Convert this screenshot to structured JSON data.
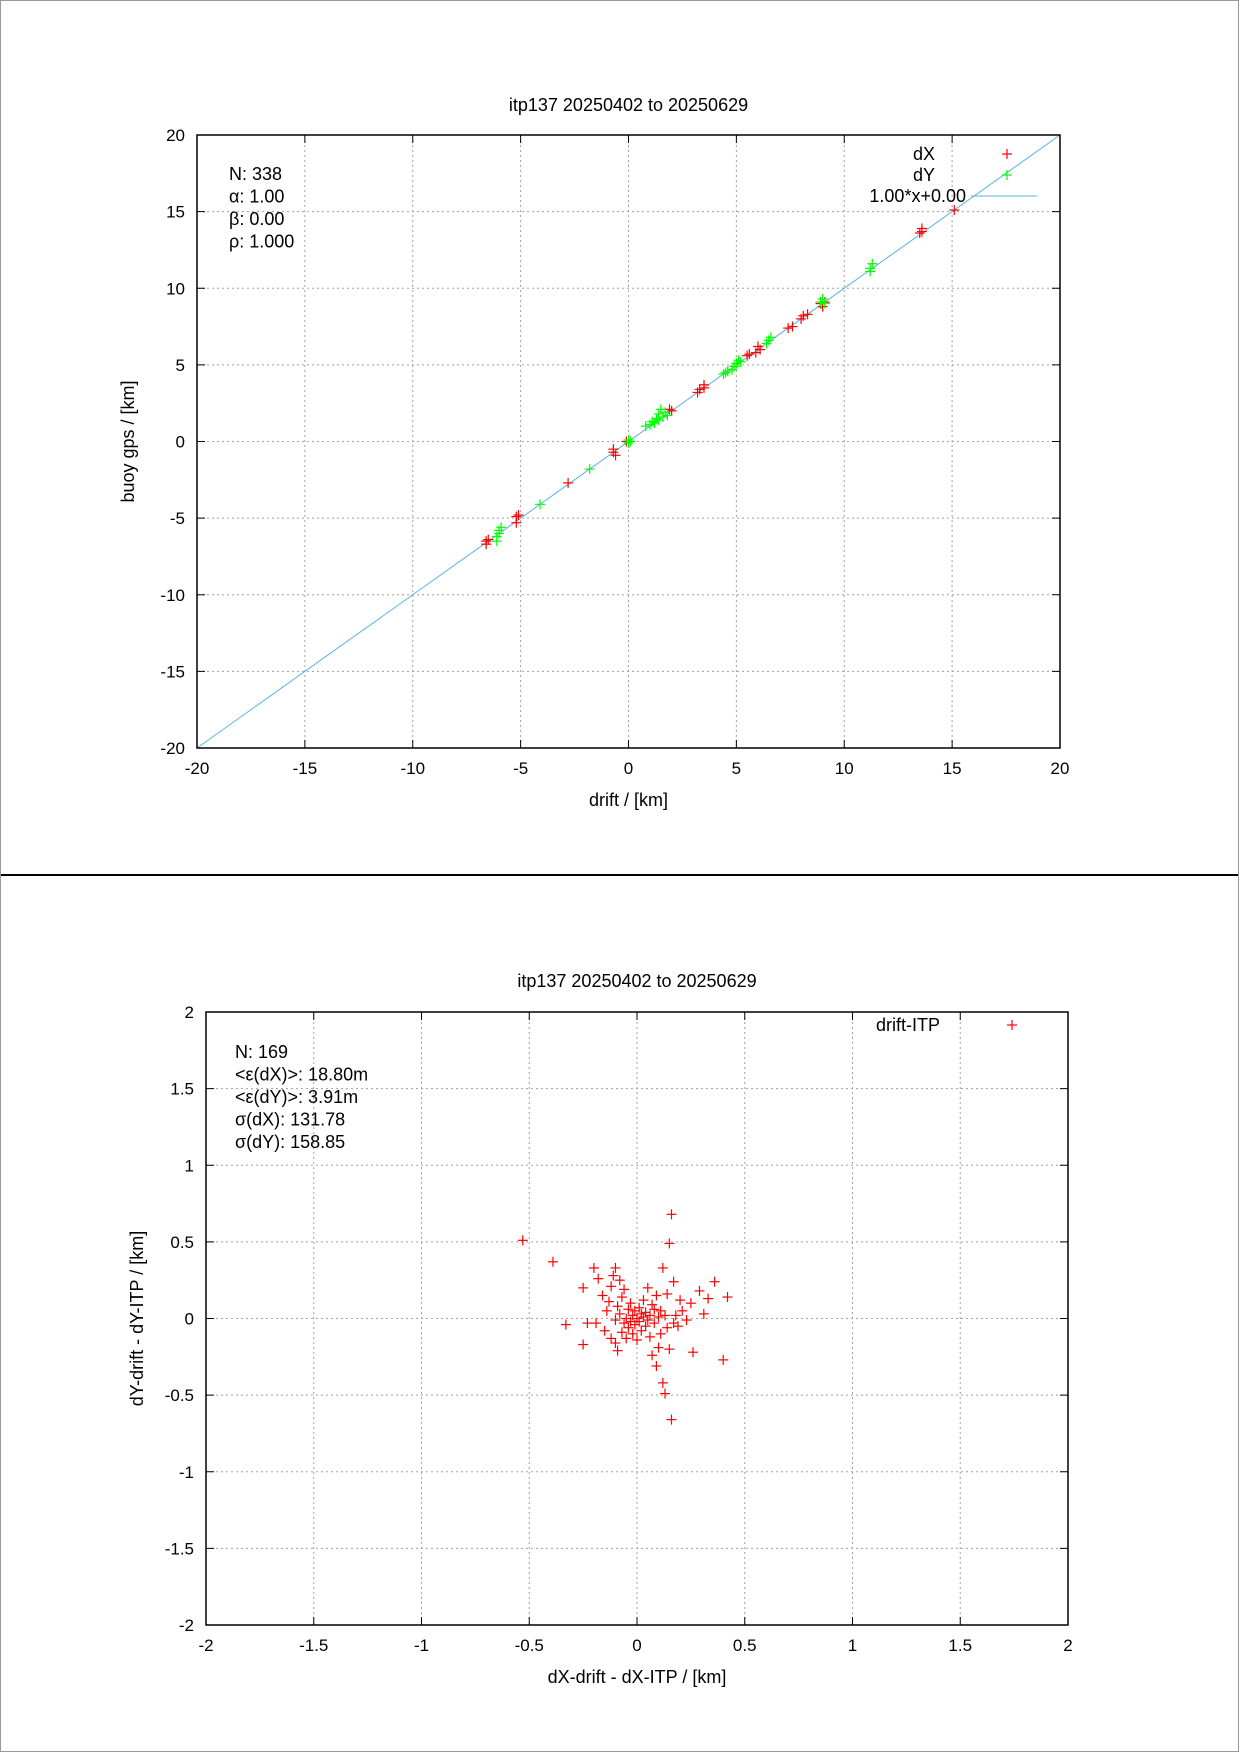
{
  "chart_data": [
    {
      "type": "scatter",
      "title": "itp137 20250402 to 20250629",
      "xlabel": "drift / [km]",
      "ylabel": "buoy gps / [km]",
      "xlim": [
        -20,
        20
      ],
      "ylim": [
        -20,
        20
      ],
      "xticks": [
        "-20",
        "-15",
        "-10",
        "-5",
        "0",
        "5",
        "10",
        "15",
        "20"
      ],
      "yticks": [
        "-20",
        "-15",
        "-10",
        "-5",
        "0",
        "5",
        "10",
        "15",
        "20"
      ],
      "grid": true,
      "legend_position": "top-right",
      "stats": [
        "N: 338",
        "α: 1.00",
        "β: 0.00",
        "ρ: 1.000"
      ],
      "fit": {
        "name": "1.00*x+0.00",
        "slope": 1.0,
        "intercept": 0.0,
        "color": "#56b4e9"
      },
      "series": [
        {
          "name": "dX",
          "color": "#ff0000",
          "points": [
            [
              -6.6,
              -6.7
            ],
            [
              -6.6,
              -6.5
            ],
            [
              -6.5,
              -6.4
            ],
            [
              -5.2,
              -5.3
            ],
            [
              -5.2,
              -4.9
            ],
            [
              -5.1,
              -4.8
            ],
            [
              -2.8,
              -2.7
            ],
            [
              -0.7,
              -0.7
            ],
            [
              -0.7,
              -0.5
            ],
            [
              -0.6,
              -0.9
            ],
            [
              -0.1,
              0.0
            ],
            [
              1.9,
              2.1
            ],
            [
              2.0,
              2.0
            ],
            [
              3.2,
              3.2
            ],
            [
              3.3,
              3.4
            ],
            [
              3.5,
              3.5
            ],
            [
              3.5,
              3.7
            ],
            [
              5.5,
              5.6
            ],
            [
              5.6,
              5.7
            ],
            [
              5.9,
              5.8
            ],
            [
              6.0,
              6.2
            ],
            [
              6.1,
              6.0
            ],
            [
              7.4,
              7.4
            ],
            [
              7.6,
              7.5
            ],
            [
              8.0,
              8.0
            ],
            [
              8.1,
              8.2
            ],
            [
              8.3,
              8.3
            ],
            [
              8.9,
              9.0
            ],
            [
              9.0,
              8.8
            ],
            [
              9.1,
              9.1
            ],
            [
              13.5,
              13.6
            ],
            [
              13.6,
              13.7
            ],
            [
              13.6,
              13.9
            ],
            [
              15.1,
              15.1
            ]
          ]
        },
        {
          "name": "dY",
          "color": "#00ff00",
          "points": [
            [
              -6.1,
              -6.5
            ],
            [
              -6.1,
              -6.2
            ],
            [
              -6.0,
              -6.0
            ],
            [
              -6.0,
              -5.8
            ],
            [
              -5.9,
              -5.6
            ],
            [
              -4.1,
              -4.1
            ],
            [
              -1.8,
              -1.8
            ],
            [
              0.0,
              -0.1
            ],
            [
              0.0,
              0.1
            ],
            [
              0.1,
              0.0
            ],
            [
              0.8,
              1.0
            ],
            [
              1.0,
              1.1
            ],
            [
              1.1,
              1.3
            ],
            [
              1.2,
              1.2
            ],
            [
              1.3,
              1.5
            ],
            [
              1.4,
              1.4
            ],
            [
              1.4,
              1.8
            ],
            [
              1.5,
              2.1
            ],
            [
              1.6,
              1.6
            ],
            [
              1.7,
              1.9
            ],
            [
              1.8,
              1.7
            ],
            [
              4.4,
              4.4
            ],
            [
              4.5,
              4.5
            ],
            [
              4.6,
              4.6
            ],
            [
              4.8,
              4.7
            ],
            [
              4.9,
              4.9
            ],
            [
              5.0,
              5.1
            ],
            [
              5.1,
              5.3
            ],
            [
              5.2,
              5.2
            ],
            [
              6.4,
              6.4
            ],
            [
              6.5,
              6.6
            ],
            [
              6.6,
              6.8
            ],
            [
              8.9,
              9.1
            ],
            [
              9.0,
              9.3
            ],
            [
              9.1,
              9.0
            ],
            [
              11.2,
              11.1
            ],
            [
              11.2,
              11.3
            ],
            [
              11.3,
              11.6
            ]
          ]
        }
      ]
    },
    {
      "type": "scatter",
      "title": "itp137 20250402 to 20250629",
      "xlabel": "dX-drift - dX-ITP / [km]",
      "ylabel": "dY-drift - dY-ITP / [km]",
      "xlim": [
        -2,
        2
      ],
      "ylim": [
        -2,
        2
      ],
      "xticks": [
        "-2",
        "-1.5",
        "-1",
        "-0.5",
        "0",
        "0.5",
        "1",
        "1.5",
        "2"
      ],
      "yticks": [
        "-2",
        "-1.5",
        "-1",
        "-0.5",
        "0",
        "0.5",
        "1",
        "1.5",
        "2"
      ],
      "grid": true,
      "legend_position": "top-right",
      "stats": [
        "N: 169",
        "<ε(dX)>:  18.80m",
        "<ε(dY)>: 3.91m",
        "σ(dX):  131.78",
        "σ(dY):  158.85"
      ],
      "series": [
        {
          "name": "drift-ITP",
          "color": "#ff0000",
          "points": [
            [
              -0.53,
              0.51
            ],
            [
              -0.39,
              0.37
            ],
            [
              -0.33,
              -0.04
            ],
            [
              -0.25,
              -0.17
            ],
            [
              -0.25,
              0.2
            ],
            [
              -0.23,
              -0.03
            ],
            [
              -0.2,
              0.33
            ],
            [
              -0.19,
              -0.03
            ],
            [
              -0.18,
              0.26
            ],
            [
              -0.16,
              0.15
            ],
            [
              -0.15,
              -0.08
            ],
            [
              -0.14,
              0.05
            ],
            [
              -0.13,
              0.11
            ],
            [
              -0.12,
              -0.13
            ],
            [
              -0.12,
              0.21
            ],
            [
              -0.11,
              0.28
            ],
            [
              -0.1,
              -0.01
            ],
            [
              -0.1,
              0.33
            ],
            [
              -0.1,
              -0.16
            ],
            [
              -0.09,
              0.08
            ],
            [
              -0.09,
              -0.21
            ],
            [
              -0.08,
              0.25
            ],
            [
              -0.08,
              0.03
            ],
            [
              -0.07,
              -0.09
            ],
            [
              -0.07,
              0.14
            ],
            [
              -0.06,
              -0.03
            ],
            [
              -0.06,
              0.19
            ],
            [
              -0.05,
              0.0
            ],
            [
              -0.05,
              -0.13
            ],
            [
              -0.04,
              0.06
            ],
            [
              -0.04,
              -0.06
            ],
            [
              -0.03,
              0.1
            ],
            [
              -0.03,
              -0.02
            ],
            [
              -0.02,
              0.02
            ],
            [
              -0.02,
              -0.1
            ],
            [
              -0.01,
              0.05
            ],
            [
              -0.01,
              -0.04
            ],
            [
              0.0,
              0.0
            ],
            [
              0.0,
              -0.14
            ],
            [
              0.01,
              0.07
            ],
            [
              0.01,
              -0.02
            ],
            [
              0.02,
              0.03
            ],
            [
              0.02,
              -0.08
            ],
            [
              0.03,
              0.01
            ],
            [
              0.03,
              0.12
            ],
            [
              0.04,
              -0.05
            ],
            [
              0.04,
              0.04
            ],
            [
              0.05,
              -0.01
            ],
            [
              0.05,
              0.2
            ],
            [
              0.06,
              0.02
            ],
            [
              0.06,
              -0.12
            ],
            [
              0.07,
              0.09
            ],
            [
              0.07,
              -0.24
            ],
            [
              0.08,
              -0.03
            ],
            [
              0.08,
              0.06
            ],
            [
              0.09,
              -0.31
            ],
            [
              0.09,
              0.15
            ],
            [
              0.1,
              0.01
            ],
            [
              0.1,
              -0.19
            ],
            [
              0.11,
              0.05
            ],
            [
              0.11,
              -0.1
            ],
            [
              0.12,
              0.33
            ],
            [
              0.12,
              -0.42
            ],
            [
              0.13,
              -0.49
            ],
            [
              0.13,
              0.02
            ],
            [
              0.14,
              0.16
            ],
            [
              0.14,
              -0.06
            ],
            [
              0.15,
              0.49
            ],
            [
              0.15,
              -0.2
            ],
            [
              0.16,
              0.68
            ],
            [
              0.16,
              -0.66
            ],
            [
              0.17,
              0.24
            ],
            [
              0.17,
              -0.03
            ],
            [
              0.18,
              0.02
            ],
            [
              0.19,
              -0.05
            ],
            [
              0.2,
              0.12
            ],
            [
              0.21,
              0.05
            ],
            [
              0.23,
              -0.01
            ],
            [
              0.25,
              0.1
            ],
            [
              0.26,
              -0.22
            ],
            [
              0.29,
              0.18
            ],
            [
              0.31,
              0.03
            ],
            [
              0.33,
              0.13
            ],
            [
              0.36,
              0.24
            ],
            [
              0.4,
              -0.27
            ],
            [
              0.42,
              0.14
            ]
          ]
        }
      ]
    }
  ]
}
